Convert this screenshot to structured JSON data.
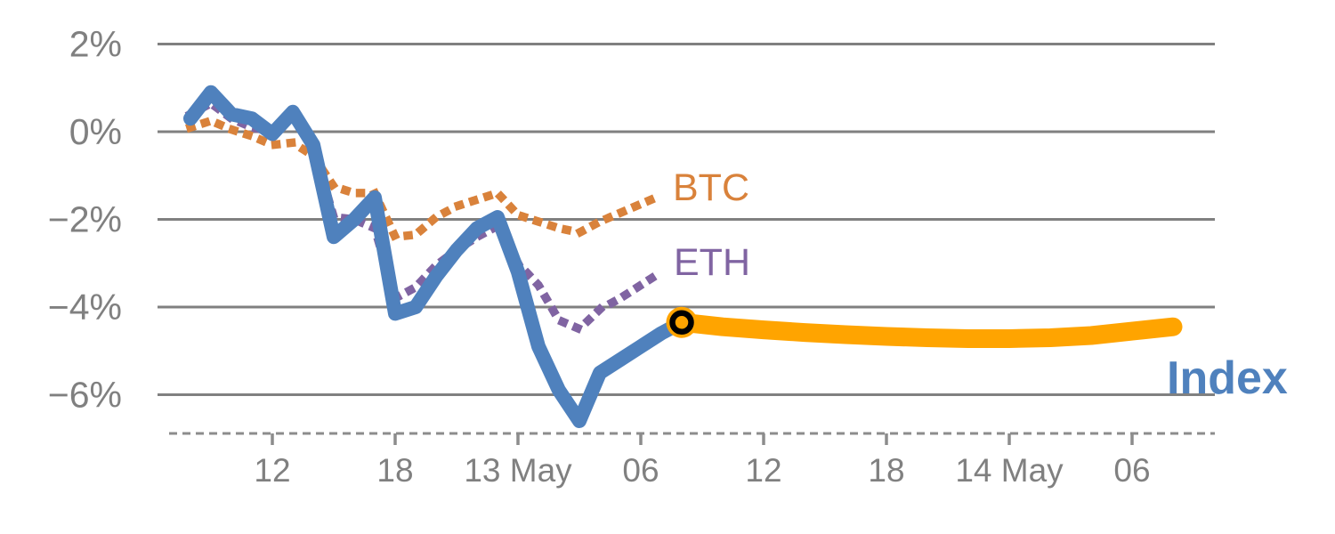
{
  "chart_data": {
    "type": "line",
    "title": "",
    "x_axis": {
      "unit": "hours since 12 May 00:00",
      "ticks": [
        {
          "label": "12",
          "t": 12
        },
        {
          "label": "18",
          "t": 18
        },
        {
          "label": "13 May",
          "t": 24
        },
        {
          "label": "06",
          "t": 30
        },
        {
          "label": "12",
          "t": 36
        },
        {
          "label": "18",
          "t": 42
        },
        {
          "label": "14 May",
          "t": 48
        },
        {
          "label": "06",
          "t": 54
        }
      ],
      "range_hours": [
        7.6,
        56.5
      ],
      "axis_style": "dashed"
    },
    "y_axis": {
      "ticks": [
        {
          "label": "2%",
          "v": 2
        },
        {
          "label": "0%",
          "v": 0
        },
        {
          "label": "−2%",
          "v": -2
        },
        {
          "label": "−4%",
          "v": -4
        },
        {
          "label": "−6%",
          "v": -6
        }
      ],
      "ylim": [
        -6.9,
        2.0
      ],
      "grid": true
    },
    "colors": {
      "btc": "#D9823B",
      "eth": "#8064A2",
      "index": "#4F81BD",
      "forecast": "#FFA400",
      "grid": "#808080",
      "axis_text": "#808080",
      "marker_ring": "#000000"
    },
    "series": [
      {
        "name": "BTC",
        "style": "dotted",
        "color": "#D9823B",
        "points": [
          [
            8,
            0.1
          ],
          [
            9,
            0.25
          ],
          [
            10,
            0.05
          ],
          [
            11,
            -0.1
          ],
          [
            12,
            -0.3
          ],
          [
            13,
            -0.25
          ],
          [
            14,
            -0.55
          ],
          [
            15,
            -1.25
          ],
          [
            16,
            -1.4
          ],
          [
            17,
            -1.4
          ],
          [
            18,
            -2.4
          ],
          [
            19,
            -2.35
          ],
          [
            20,
            -1.95
          ],
          [
            21,
            -1.7
          ],
          [
            22,
            -1.55
          ],
          [
            23,
            -1.4
          ],
          [
            24,
            -1.9
          ],
          [
            25,
            -2.05
          ],
          [
            26,
            -2.2
          ],
          [
            27,
            -2.3
          ],
          [
            28,
            -2.05
          ],
          [
            29,
            -1.85
          ],
          [
            30,
            -1.65
          ],
          [
            31,
            -1.45
          ]
        ]
      },
      {
        "name": "ETH",
        "style": "dotted",
        "color": "#8064A2",
        "points": [
          [
            8,
            0.4
          ],
          [
            9,
            0.65
          ],
          [
            10,
            0.3
          ],
          [
            11,
            0.1
          ],
          [
            12,
            0.0
          ],
          [
            13,
            0.4
          ],
          [
            14,
            -0.35
          ],
          [
            15,
            -1.95
          ],
          [
            16,
            -2.0
          ],
          [
            17,
            -2.2
          ],
          [
            18,
            -3.8
          ],
          [
            19,
            -3.55
          ],
          [
            20,
            -3.05
          ],
          [
            21,
            -2.7
          ],
          [
            22,
            -2.4
          ],
          [
            23,
            -2.15
          ],
          [
            24,
            -3.0
          ],
          [
            25,
            -3.5
          ],
          [
            26,
            -4.3
          ],
          [
            27,
            -4.5
          ],
          [
            28,
            -4.05
          ],
          [
            29,
            -3.8
          ],
          [
            30,
            -3.5
          ],
          [
            31,
            -3.2
          ]
        ]
      },
      {
        "name": "Index",
        "style": "solid",
        "color": "#4F81BD",
        "points": [
          [
            8,
            0.3
          ],
          [
            9,
            0.9
          ],
          [
            10,
            0.4
          ],
          [
            11,
            0.3
          ],
          [
            12,
            -0.05
          ],
          [
            13,
            0.45
          ],
          [
            14,
            -0.3
          ],
          [
            15,
            -2.4
          ],
          [
            16,
            -2.0
          ],
          [
            17,
            -1.5
          ],
          [
            18,
            -4.15
          ],
          [
            19,
            -4.0
          ],
          [
            20,
            -3.3
          ],
          [
            21,
            -2.7
          ],
          [
            22,
            -2.2
          ],
          [
            23,
            -1.95
          ],
          [
            24,
            -3.2
          ],
          [
            25,
            -4.9
          ],
          [
            26,
            -5.9
          ],
          [
            27,
            -6.6
          ],
          [
            28,
            -5.5
          ],
          [
            29,
            -5.2
          ],
          [
            30,
            -4.9
          ],
          [
            31,
            -4.6
          ],
          [
            32,
            -4.35
          ]
        ]
      },
      {
        "name": "Index forecast",
        "style": "solid-thick",
        "color": "#FFA400",
        "points": [
          [
            32,
            -4.35
          ],
          [
            34,
            -4.45
          ],
          [
            36,
            -4.52
          ],
          [
            38,
            -4.58
          ],
          [
            40,
            -4.63
          ],
          [
            42,
            -4.67
          ],
          [
            44,
            -4.7
          ],
          [
            46,
            -4.72
          ],
          [
            48,
            -4.72
          ],
          [
            50,
            -4.7
          ],
          [
            52,
            -4.65
          ],
          [
            54,
            -4.55
          ],
          [
            56,
            -4.45
          ]
        ]
      }
    ],
    "marker": {
      "series": "Index",
      "t": 32,
      "v": -4.35,
      "style": "black ring on orange dot (forecast start)"
    },
    "series_labels": [
      {
        "text": "BTC",
        "color": "#D9823B"
      },
      {
        "text": "ETH",
        "color": "#8064A2"
      },
      {
        "text": "Index",
        "color": "#4F81BD"
      }
    ],
    "legend_position": "inline-labels-right-of-lines"
  }
}
